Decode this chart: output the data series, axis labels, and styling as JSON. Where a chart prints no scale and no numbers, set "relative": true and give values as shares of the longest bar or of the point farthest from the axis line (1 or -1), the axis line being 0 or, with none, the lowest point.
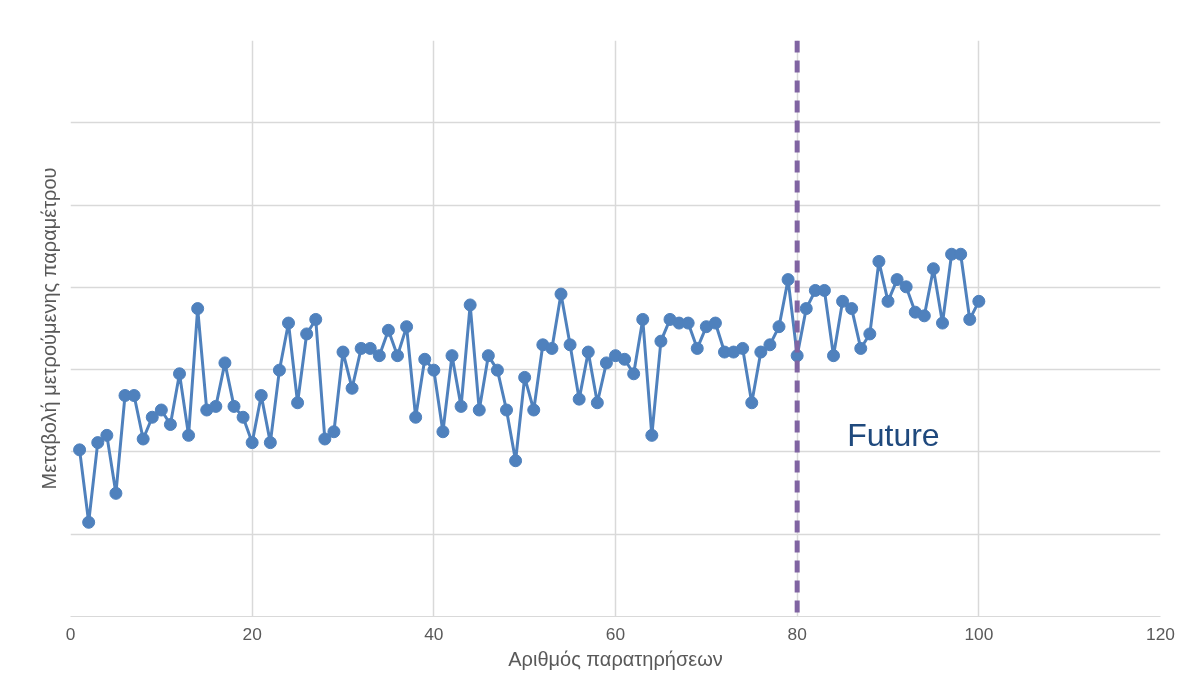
{
  "chart_data": {
    "type": "line",
    "xlabel": "Αριθμός παρατηρήσεων",
    "ylabel": "Μεταβολή μετρούμενης παραμέτρου",
    "relative": true,
    "x": [
      1,
      2,
      3,
      4,
      5,
      6,
      7,
      8,
      9,
      10,
      11,
      12,
      13,
      14,
      15,
      16,
      17,
      18,
      19,
      20,
      21,
      22,
      23,
      24,
      25,
      26,
      27,
      28,
      29,
      30,
      31,
      32,
      33,
      34,
      35,
      36,
      37,
      38,
      39,
      40,
      41,
      42,
      43,
      44,
      45,
      46,
      47,
      48,
      49,
      50,
      51,
      52,
      53,
      54,
      55,
      56,
      57,
      58,
      59,
      60,
      61,
      62,
      63,
      64,
      65,
      66,
      67,
      68,
      69,
      70,
      71,
      72,
      73,
      74,
      75,
      76,
      77,
      78,
      79,
      80,
      81,
      82,
      83,
      84,
      85,
      86,
      87,
      88,
      89,
      90,
      91,
      92,
      93,
      94,
      95,
      96,
      97,
      98,
      99,
      100
    ],
    "series": [
      {
        "color": "#4f81bd",
        "values": [
          0.46,
          0.26,
          0.48,
          0.5,
          0.34,
          0.61,
          0.61,
          0.49,
          0.55,
          0.57,
          0.53,
          0.67,
          0.5,
          0.85,
          0.57,
          0.58,
          0.7,
          0.58,
          0.55,
          0.48,
          0.61,
          0.48,
          0.68,
          0.81,
          0.59,
          0.78,
          0.82,
          0.49,
          0.51,
          0.73,
          0.63,
          0.74,
          0.74,
          0.72,
          0.79,
          0.72,
          0.8,
          0.55,
          0.71,
          0.68,
          0.51,
          0.72,
          0.58,
          0.86,
          0.57,
          0.72,
          0.68,
          0.57,
          0.43,
          0.66,
          0.57,
          0.75,
          0.74,
          0.89,
          0.75,
          0.6,
          0.73,
          0.59,
          0.7,
          0.72,
          0.71,
          0.67,
          0.82,
          0.5,
          0.76,
          0.82,
          0.81,
          0.81,
          0.74,
          0.8,
          0.81,
          0.73,
          0.73,
          0.74,
          0.59,
          0.73,
          0.75,
          0.8,
          0.93,
          0.72,
          0.85,
          0.9,
          0.9,
          0.72,
          0.87,
          0.85,
          0.74,
          0.78,
          0.98,
          0.87,
          0.93,
          0.91,
          0.84,
          0.83,
          0.96,
          0.81,
          1,
          1,
          0.82,
          0.87
        ]
      }
    ],
    "xlim": [
      0,
      120
    ],
    "xticks": [
      0,
      20,
      40,
      60,
      80,
      100,
      120
    ],
    "grid": true,
    "marker": "circle",
    "line_style": "solid",
    "ref_lines": [
      {
        "axis": "x",
        "value": 80,
        "label": "Future",
        "color": "#8064a2",
        "line_style": "dashed"
      }
    ]
  }
}
